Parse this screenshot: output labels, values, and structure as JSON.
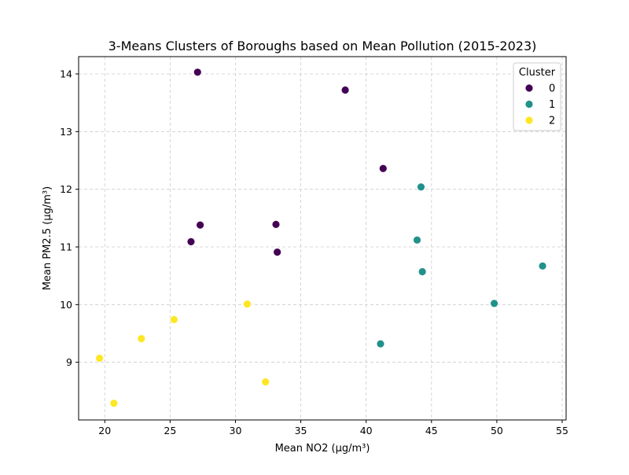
{
  "chart_data": {
    "type": "scatter",
    "title": "3-Means Clusters of Boroughs based on Mean Pollution (2015-2023)",
    "xlabel": "Mean NO2 (µg/m³)",
    "ylabel": "Mean PM2.5 (µg/m³)",
    "xlim": [
      18.0,
      55.3
    ],
    "ylim": [
      8.0,
      14.3
    ],
    "xticks": [
      20,
      25,
      30,
      35,
      40,
      45,
      50,
      55
    ],
    "yticks": [
      9,
      10,
      11,
      12,
      13,
      14
    ],
    "grid": true,
    "legend": {
      "title": "Cluster",
      "position": "top-right"
    },
    "series": [
      {
        "name": "0",
        "color": "#440154",
        "points": [
          {
            "x": 27.1,
            "y": 14.03
          },
          {
            "x": 38.4,
            "y": 13.72
          },
          {
            "x": 41.3,
            "y": 12.36
          },
          {
            "x": 27.3,
            "y": 11.38
          },
          {
            "x": 33.1,
            "y": 11.39
          },
          {
            "x": 26.6,
            "y": 11.09
          },
          {
            "x": 33.2,
            "y": 10.91
          }
        ]
      },
      {
        "name": "1",
        "color": "#21918c",
        "points": [
          {
            "x": 44.2,
            "y": 12.04
          },
          {
            "x": 43.9,
            "y": 11.12
          },
          {
            "x": 44.3,
            "y": 10.57
          },
          {
            "x": 53.5,
            "y": 10.67
          },
          {
            "x": 49.8,
            "y": 10.02
          },
          {
            "x": 41.1,
            "y": 9.32
          }
        ]
      },
      {
        "name": "2",
        "color": "#fde725",
        "points": [
          {
            "x": 30.9,
            "y": 10.01
          },
          {
            "x": 25.3,
            "y": 9.74
          },
          {
            "x": 22.8,
            "y": 9.41
          },
          {
            "x": 19.6,
            "y": 9.07
          },
          {
            "x": 32.3,
            "y": 8.66
          },
          {
            "x": 20.7,
            "y": 8.29
          }
        ]
      }
    ]
  }
}
